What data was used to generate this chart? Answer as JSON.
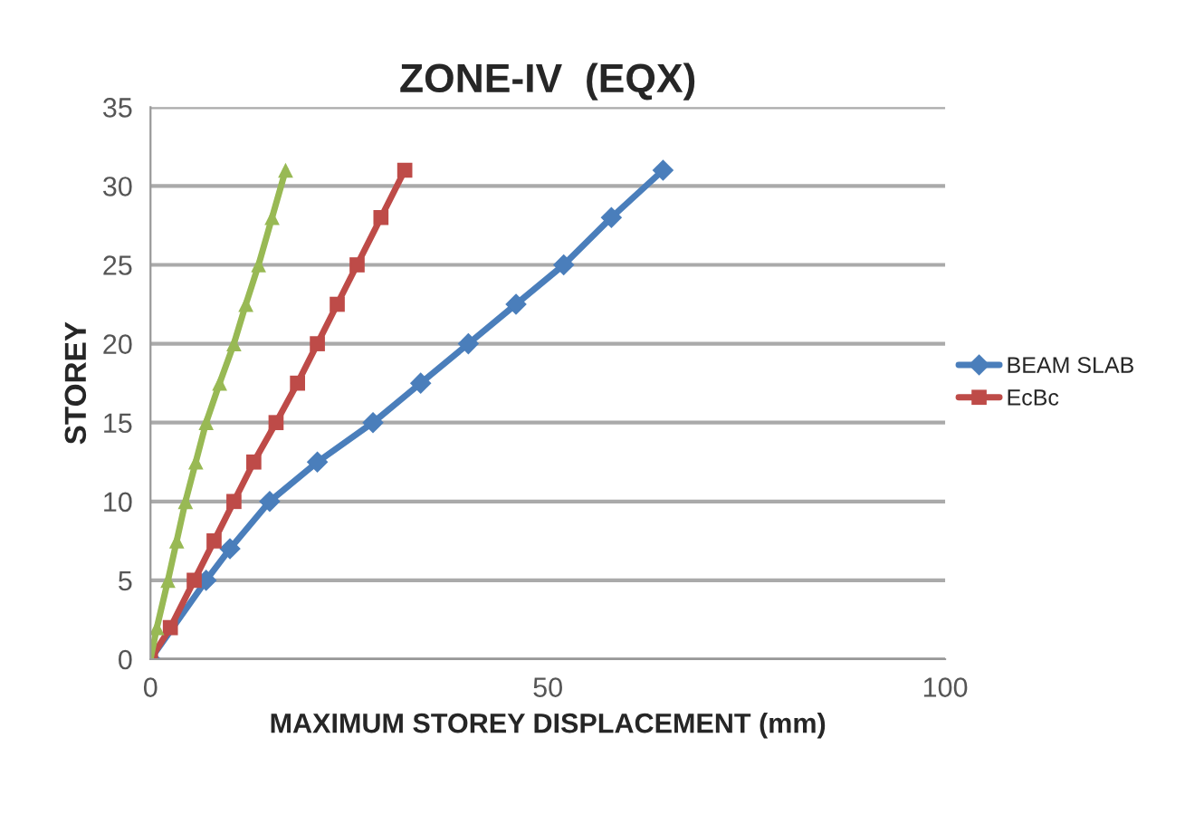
{
  "chart_data": {
    "type": "line",
    "title": "ZONE-IV  (EQX)",
    "xlabel": "MAXIMUM STOREY DISPLACEMENT (mm)",
    "ylabel": "STOREY",
    "xlim": [
      0,
      100
    ],
    "xticks": [
      0,
      50,
      100
    ],
    "ylim": [
      0,
      35
    ],
    "yticks": [
      0,
      5,
      10,
      15,
      20,
      25,
      30,
      35
    ],
    "grid": "y",
    "legend": "right",
    "series": [
      {
        "name": "BEAM SLAB",
        "color": "#4a7ebb",
        "marker": "diamond",
        "x": [
          0,
          7,
          10,
          15,
          21,
          28,
          34,
          40,
          46,
          52,
          58,
          64.5
        ],
        "values": [
          0,
          5,
          7,
          10,
          12.5,
          15,
          17.5,
          20,
          22.5,
          25,
          28,
          31
        ]
      },
      {
        "name": "EcBc",
        "color": "#be4b48",
        "marker": "square",
        "x": [
          0,
          2.5,
          5.5,
          8,
          10.5,
          13,
          15.8,
          18.5,
          21,
          23.5,
          26,
          29,
          32
        ],
        "values": [
          0,
          2,
          5,
          7.5,
          10,
          12.5,
          15,
          17.5,
          20,
          22.5,
          25,
          28,
          31
        ]
      },
      {
        "color": "#98b954",
        "marker": "triangle",
        "x": [
          0,
          0.8,
          2.2,
          3.3,
          4.4,
          5.7,
          7,
          8.7,
          10.5,
          12,
          13.6,
          15.3,
          17
        ],
        "values": [
          0,
          2,
          5,
          7.5,
          10,
          12.5,
          15,
          17.5,
          20,
          22.5,
          25,
          28,
          31
        ]
      }
    ]
  }
}
